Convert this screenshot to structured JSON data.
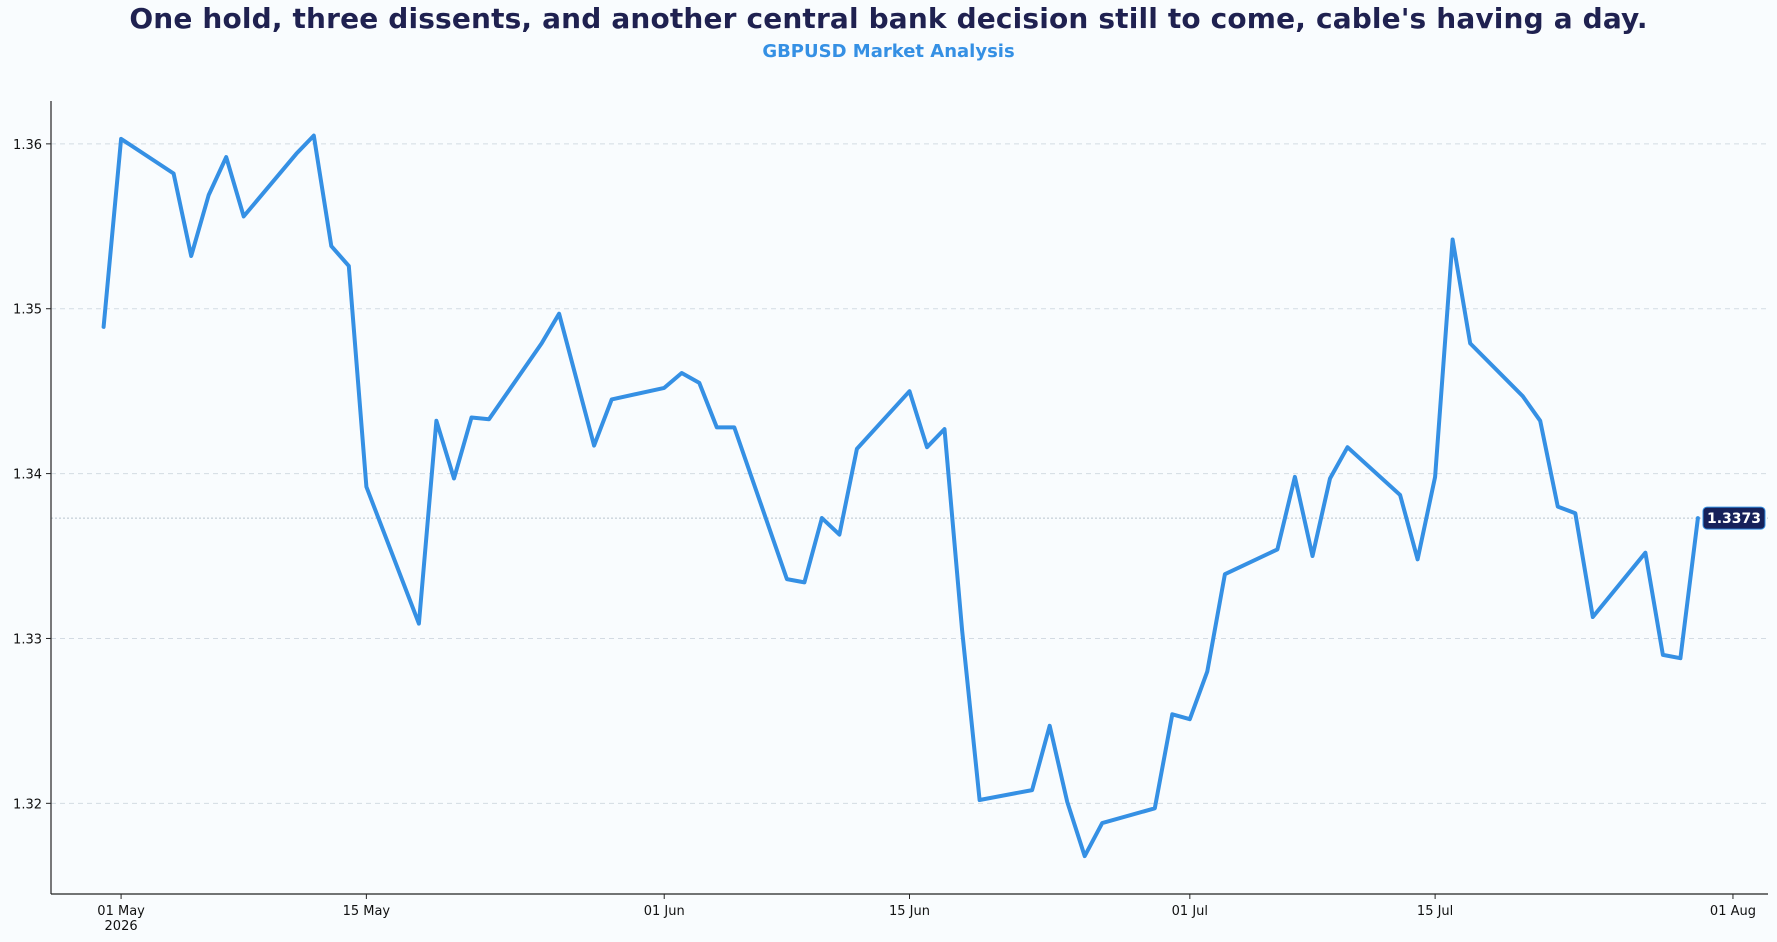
{
  "chart_data": {
    "type": "line",
    "title": "One hold, three dissents, and another central bank decision still to come, cable's having a day.",
    "subtitle": "GBPUSD Market Analysis",
    "xlabel": "",
    "ylabel": "",
    "ylim": [
      1.3145,
      1.3626
    ],
    "y_ticks": [
      1.32,
      1.33,
      1.34,
      1.35,
      1.36
    ],
    "y_tick_labels": [
      "1.32",
      "1.33",
      "1.34",
      "1.35",
      "1.36"
    ],
    "x_ticks": [
      "2026-05-01",
      "2026-05-15",
      "2026-06-01",
      "2026-06-15",
      "2026-07-01",
      "2026-07-15",
      "2026-08-01"
    ],
    "x_tick_labels": [
      "01 May\n2026",
      "15 May",
      "01 Jun",
      "15 Jun",
      "01 Jul",
      "15 Jul",
      "01 Aug"
    ],
    "xlim": [
      "2026-04-27",
      "2026-08-03"
    ],
    "grid": "y dashed",
    "line_color": "#3590e4",
    "last_value_label": "1.3373",
    "series": [
      {
        "x": [
          "2026-04-30",
          "2026-05-01",
          "2026-05-04",
          "2026-05-05",
          "2026-05-06",
          "2026-05-07",
          "2026-05-08",
          "2026-05-11",
          "2026-05-12",
          "2026-05-13",
          "2026-05-14",
          "2026-05-15",
          "2026-05-18",
          "2026-05-19",
          "2026-05-20",
          "2026-05-21",
          "2026-05-22",
          "2026-05-25",
          "2026-05-26",
          "2026-05-28",
          "2026-05-29",
          "2026-06-01",
          "2026-06-02",
          "2026-06-03",
          "2026-06-04",
          "2026-06-05",
          "2026-06-08",
          "2026-06-09",
          "2026-06-10",
          "2026-06-11",
          "2026-06-12",
          "2026-06-15",
          "2026-06-16",
          "2026-06-17",
          "2026-06-18",
          "2026-06-19",
          "2026-06-22",
          "2026-06-23",
          "2026-06-24",
          "2026-06-25",
          "2026-06-26",
          "2026-06-29",
          "2026-06-30",
          "2026-07-01",
          "2026-07-02",
          "2026-07-03",
          "2026-07-06",
          "2026-07-07",
          "2026-07-08",
          "2026-07-09",
          "2026-07-10",
          "2026-07-13",
          "2026-07-14",
          "2026-07-15",
          "2026-07-16",
          "2026-07-17",
          "2026-07-20",
          "2026-07-21",
          "2026-07-22",
          "2026-07-23",
          "2026-07-24",
          "2026-07-27",
          "2026-07-28",
          "2026-07-29",
          "2026-07-30"
        ],
        "y": [
          1.3489,
          1.3603,
          1.3582,
          1.3532,
          1.3569,
          1.3592,
          1.3556,
          1.3594,
          1.3605,
          1.3538,
          1.3526,
          1.3392,
          1.3309,
          1.3432,
          1.3397,
          1.3434,
          1.3433,
          1.3479,
          1.3497,
          1.3417,
          1.3445,
          1.3452,
          1.3461,
          1.3455,
          1.3428,
          1.3428,
          1.3336,
          1.3334,
          1.3373,
          1.3363,
          1.3415,
          1.345,
          1.3416,
          1.3427,
          1.3305,
          1.3202,
          1.3208,
          1.3247,
          1.3201,
          1.3168,
          1.3188,
          1.3197,
          1.3254,
          1.3251,
          1.328,
          1.3339,
          1.3354,
          1.3398,
          1.335,
          1.3397,
          1.3416,
          1.3387,
          1.3348,
          1.3398,
          1.3542,
          1.3479,
          1.3447,
          1.3432,
          1.338,
          1.3376,
          1.3313,
          1.3352,
          1.329,
          1.3288,
          1.3373
        ]
      }
    ]
  }
}
